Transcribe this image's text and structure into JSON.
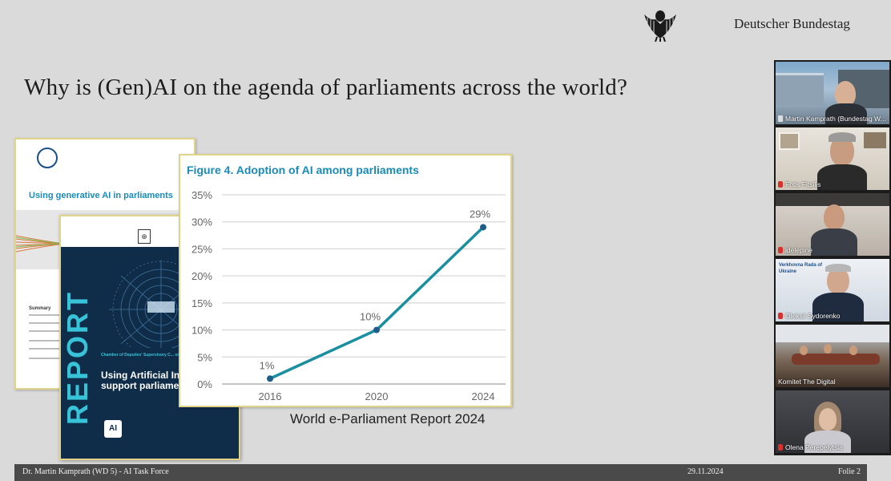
{
  "slide": {
    "brand": "Deutscher Bundestag",
    "brand_icon": "federal-eagle-icon",
    "title": "Why is (Gen)AI on the agenda of parliaments across the world?",
    "caption": "World e-Parliament Report 2024"
  },
  "doc1": {
    "heading": "Using generative AI in parliaments",
    "summary": "Summary"
  },
  "doc2": {
    "vertical_word": "REPORT",
    "chamber_line": "Chamber of Deputies' Supervisory C... on Documentation Activities",
    "title": "Using Artificial Intelligence to support parliamentary work",
    "ai_logo": "AI"
  },
  "chart_data": {
    "type": "line",
    "title": "Figure 4.    Adoption of AI among parliaments",
    "x": [
      "2016",
      "2020",
      "2024"
    ],
    "series": [
      {
        "values": [
          1,
          10,
          29
        ],
        "labels": [
          "1%",
          "10%",
          "29%"
        ],
        "color": "#1a8fa0"
      }
    ],
    "y_ticks": [
      "0%",
      "5%",
      "10%",
      "15%",
      "20%",
      "25%",
      "30%",
      "35%"
    ],
    "ylim": [
      0,
      35
    ],
    "grid": true
  },
  "participants": [
    {
      "name": "Martin Kamprath (Bundestag W...",
      "indicator": "pin",
      "active": true
    },
    {
      "name": "Fotis Fitsilis",
      "indicator": "mute",
      "active": false
    },
    {
      "name": "idelepine",
      "indicator": "mute",
      "active": false
    },
    {
      "name": "Oleksii Sydorenko",
      "indicator": "mute",
      "active": false,
      "backdrop_text": "Verkhovna Rada of Ukraine"
    },
    {
      "name": "Komitet The Digital",
      "indicator": "none",
      "active": false
    },
    {
      "name": "Olena Perepelytsia",
      "indicator": "mute",
      "active": false
    }
  ],
  "footer": {
    "author": "Dr. Martin Kamprath (WD 5) - AI Task Force",
    "date": "29.11.2024",
    "slide_no": "Folie 2"
  }
}
